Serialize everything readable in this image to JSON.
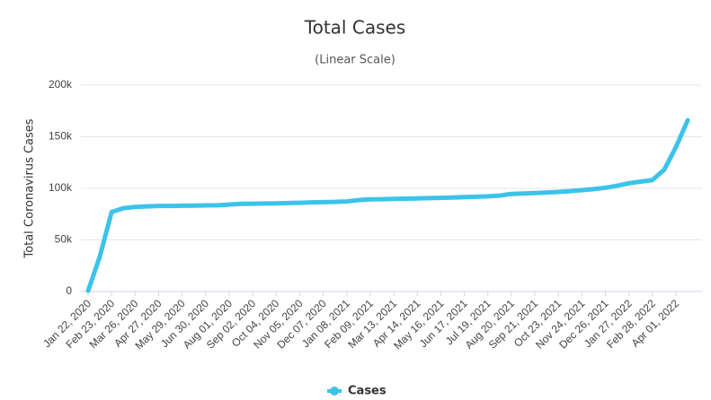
{
  "chart_data": {
    "type": "line",
    "title": "Total Cases",
    "subtitle": "(Linear Scale)",
    "y_axis_label": "Total Coronavirus Cases",
    "categories": [
      "Jan 22, 2020",
      null,
      "Feb 23, 2020",
      null,
      "Mar 26, 2020",
      null,
      "Apr 27, 2020",
      null,
      "May 29, 2020",
      null,
      "Jun 30, 2020",
      null,
      "Aug 01, 2020",
      null,
      "Sep 02, 2020",
      null,
      "Oct 04, 2020",
      null,
      "Nov 05, 2020",
      null,
      "Dec 07, 2020",
      null,
      "Jan 08, 2021",
      null,
      "Feb 09, 2021",
      null,
      "Mar 13, 2021",
      null,
      "Apr 14, 2021",
      null,
      "May 16, 2021",
      null,
      "Jun 17, 2021",
      null,
      "Jul 19, 2021",
      null,
      "Aug 20, 2021",
      null,
      "Sep 21, 2021",
      null,
      "Oct 23, 2021",
      null,
      "Nov 24, 2021",
      null,
      "Dec 26, 2021",
      null,
      "Jan 27, 2022",
      null,
      "Feb 28, 2022",
      null,
      "Apr 01, 2022",
      null
    ],
    "series": [
      {
        "name": "Cases",
        "color": "#3cc3ea",
        "values": [
          571,
          34000,
          77000,
          80800,
          81900,
          82500,
          83000,
          83000,
          83100,
          83200,
          83500,
          83600,
          84300,
          85000,
          85100,
          85300,
          85400,
          85700,
          86000,
          86400,
          86600,
          86900,
          87300,
          88600,
          89400,
          89500,
          89800,
          90000,
          90300,
          90500,
          90800,
          91100,
          91500,
          91800,
          92300,
          93000,
          94600,
          95000,
          95500,
          96000,
          96500,
          97300,
          98300,
          99200,
          100500,
          102500,
          105000,
          106500,
          108000,
          118000,
          140000,
          166000
        ]
      }
    ],
    "ylim": [
      0,
      200000
    ],
    "yticks": [
      0,
      {
        "value": 50000,
        "label": "50k"
      },
      {
        "value": 100000,
        "label": "100k"
      },
      {
        "value": 150000,
        "label": "150k"
      },
      {
        "value": 200000,
        "label": "200k"
      }
    ],
    "grid": true,
    "legend": "bottom"
  }
}
